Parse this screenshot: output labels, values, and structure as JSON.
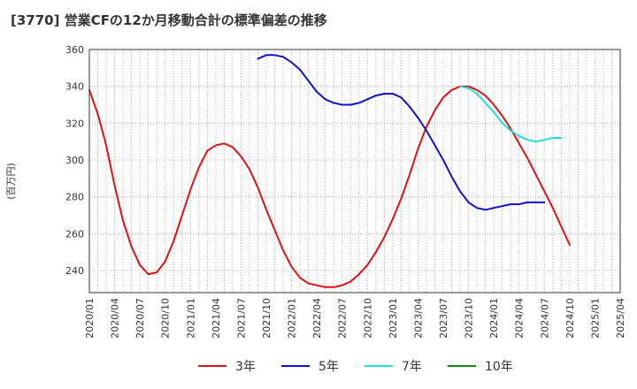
{
  "chart_data": {
    "type": "line",
    "title": "[3770]  営業CFの12か月移動合計の標準偏差の推移",
    "ylabel": "(百万円)",
    "xlabel": "",
    "ylim": [
      228,
      360
    ],
    "yticks": [
      240,
      260,
      280,
      300,
      320,
      340,
      360
    ],
    "xticks": [
      "2020/01",
      "2020/04",
      "2020/07",
      "2020/10",
      "2021/01",
      "2021/04",
      "2021/07",
      "2021/10",
      "2022/01",
      "2022/04",
      "2022/07",
      "2022/10",
      "2023/01",
      "2023/04",
      "2023/07",
      "2023/10",
      "2024/01",
      "2024/04",
      "2024/07",
      "2024/10",
      "2025/01",
      "2025/04"
    ],
    "x_start": "2020/01",
    "x_end": "2025/04",
    "grid": true,
    "legend_position": "bottom",
    "series": [
      {
        "name": "3年",
        "color": "#dd1111",
        "start": "2020/01",
        "values": [
          338,
          325,
          308,
          286,
          267,
          253,
          243,
          238,
          239,
          245,
          256,
          270,
          284,
          296,
          305,
          308,
          309,
          307,
          302,
          295,
          285,
          273,
          262,
          251,
          242,
          236,
          233,
          232,
          231,
          231,
          232,
          234,
          238,
          243,
          250,
          258,
          268,
          279,
          292,
          306,
          318,
          327,
          334,
          338,
          340,
          340,
          338,
          335,
          330,
          324,
          317,
          309,
          301,
          292,
          283,
          274,
          264,
          254
        ]
      },
      {
        "name": "5年",
        "color": "#1111cc",
        "start": "2021/09",
        "values": [
          355,
          357,
          357,
          356,
          353,
          349,
          343,
          337,
          333,
          331,
          330,
          330,
          331,
          333,
          335,
          336,
          336,
          334,
          329,
          323,
          316,
          308,
          300,
          291,
          283,
          277,
          274,
          273,
          274,
          275,
          276,
          276,
          277,
          277,
          277
        ]
      },
      {
        "name": "7年",
        "color": "#22dddd",
        "start": "2023/09",
        "values": [
          340,
          339,
          336,
          331,
          326,
          320,
          316,
          313,
          311,
          310,
          311,
          312,
          312
        ]
      },
      {
        "name": "10年",
        "color": "#118811",
        "start": "2020/01",
        "values": []
      }
    ]
  }
}
